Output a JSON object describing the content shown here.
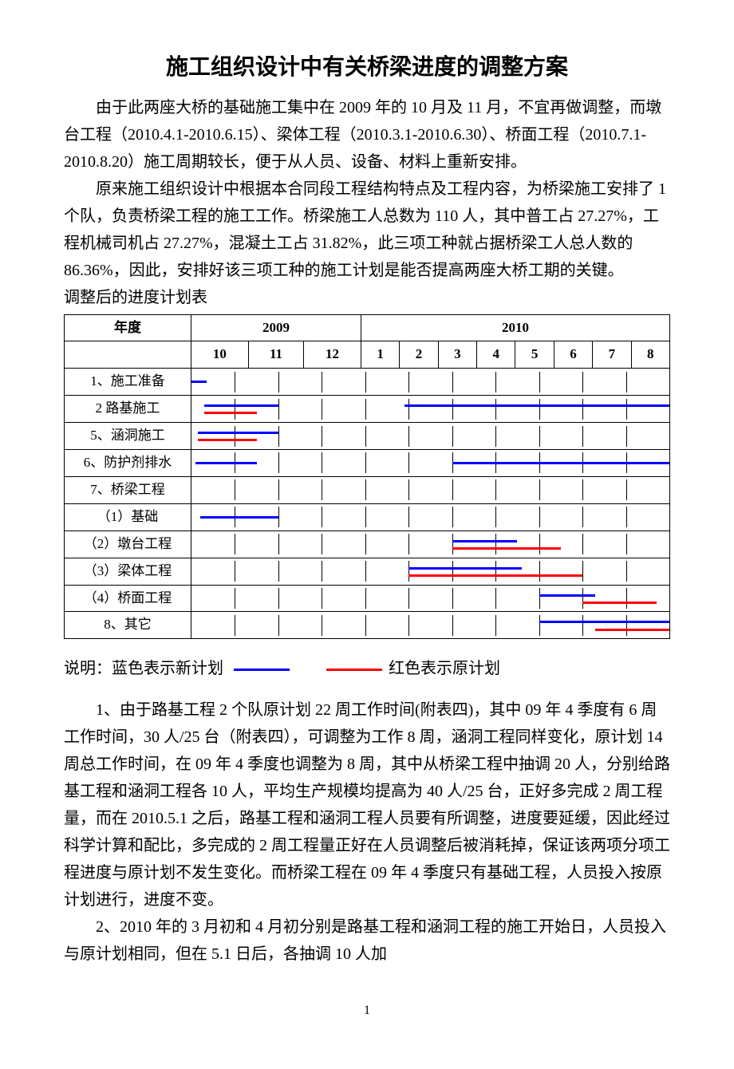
{
  "title": "施工组织设计中有关桥梁进度的调整方案",
  "para1": "由于此两座大桥的基础施工集中在 2009 年的 10 月及 11 月，不宜再做调整，而墩台工程（2010.4.1-2010.6.15）、梁体工程（2010.3.1-2010.6.30）、桥面工程（2010.7.1-2010.8.20）施工周期较长，便于从人员、设备、材料上重新安排。",
  "para2": "原来施工组织设计中根据本合同段工程结构特点及工程内容，为桥梁施工安排了 1 个队，负责桥梁工程的施工工作。桥梁施工人总数为 110 人，其中普工占 27.27%，工程机械司机占 27.27%，混凝土工占 31.82%，此三项工种就占据桥梁工人总人数的 86.36%，因此，安排好该三项工种的施工计划是能否提高两座大桥工期的关键。",
  "tableCaption": "调整后的进度计划表",
  "gantt": {
    "yearLabel": "年度",
    "year1": "2009",
    "year2": "2010",
    "months": [
      "10",
      "11",
      "12",
      "1",
      "2",
      "3",
      "4",
      "5",
      "6",
      "7",
      "8"
    ],
    "colors": {
      "new": "#0000ff",
      "old": "#ff0000"
    },
    "rows": [
      {
        "label": "1、施工准备",
        "bars": [
          {
            "color": "new",
            "startCol": 0,
            "startFrac": 0.0,
            "endCol": 0,
            "endFrac": 0.35,
            "y": 0.5
          }
        ]
      },
      {
        "label": "2 路基施工",
        "bars": [
          {
            "color": "new",
            "startCol": 0,
            "startFrac": 0.3,
            "endCol": 1,
            "endFrac": 1.0,
            "y": 0.35
          },
          {
            "color": "new",
            "startCol": 4,
            "startFrac": 0.9,
            "endCol": 10,
            "endFrac": 1.0,
            "y": 0.35
          },
          {
            "color": "old",
            "startCol": 0,
            "startFrac": 0.3,
            "endCol": 1,
            "endFrac": 0.5,
            "y": 0.7
          }
        ]
      },
      {
        "label": "5、涵洞施工",
        "bars": [
          {
            "color": "new",
            "startCol": 0,
            "startFrac": 0.15,
            "endCol": 1,
            "endFrac": 1.0,
            "y": 0.35
          },
          {
            "color": "old",
            "startCol": 0,
            "startFrac": 0.15,
            "endCol": 1,
            "endFrac": 0.5,
            "y": 0.7
          }
        ]
      },
      {
        "label": "6、防护剂排水",
        "bars": [
          {
            "color": "new",
            "startCol": 0,
            "startFrac": 0.1,
            "endCol": 1,
            "endFrac": 0.5,
            "y": 0.5
          },
          {
            "color": "new",
            "startCol": 6,
            "startFrac": 0.0,
            "endCol": 10,
            "endFrac": 1.0,
            "y": 0.5
          }
        ]
      },
      {
        "label": "7、桥梁工程",
        "bars": []
      },
      {
        "label": "（1）基础",
        "bars": [
          {
            "color": "new",
            "startCol": 0,
            "startFrac": 0.2,
            "endCol": 1,
            "endFrac": 1.0,
            "y": 0.5
          }
        ]
      },
      {
        "label": "（2）墩台工程",
        "bars": [
          {
            "color": "new",
            "startCol": 6,
            "startFrac": 0.0,
            "endCol": 7,
            "endFrac": 0.5,
            "y": 0.35
          },
          {
            "color": "old",
            "startCol": 6,
            "startFrac": 0.0,
            "endCol": 8,
            "endFrac": 0.5,
            "y": 0.7
          }
        ]
      },
      {
        "label": "（3）梁体工程",
        "bars": [
          {
            "color": "new",
            "startCol": 5,
            "startFrac": 0.0,
            "endCol": 7,
            "endFrac": 0.6,
            "y": 0.35
          },
          {
            "color": "old",
            "startCol": 5,
            "startFrac": 0.0,
            "endCol": 8,
            "endFrac": 1.0,
            "y": 0.7
          }
        ]
      },
      {
        "label": "（4）桥面工程",
        "bars": [
          {
            "color": "new",
            "startCol": 8,
            "startFrac": 0.0,
            "endCol": 9,
            "endFrac": 0.3,
            "y": 0.35
          },
          {
            "color": "old",
            "startCol": 9,
            "startFrac": 0.0,
            "endCol": 10,
            "endFrac": 0.7,
            "y": 0.7
          }
        ]
      },
      {
        "label": "8、其它",
        "bars": [
          {
            "color": "new",
            "startCol": 8,
            "startFrac": 0.0,
            "endCol": 10,
            "endFrac": 1.0,
            "y": 0.35
          },
          {
            "color": "old",
            "startCol": 9,
            "startFrac": 0.3,
            "endCol": 10,
            "endFrac": 1.0,
            "y": 0.7
          }
        ]
      }
    ]
  },
  "legend": {
    "prefix": "说明：",
    "newText": "蓝色表示新计划",
    "oldText": "红色表示原计划"
  },
  "para3": "1、由于路基工程 2 个队原计划 22 周工作时间(附表四)，其中 09 年 4 季度有 6 周工作时间，30 人/25 台（附表四），可调整为工作 8 周，涵洞工程同样变化，原计划 14 周总工作时间，在 09 年 4 季度也调整为 8 周，其中从桥梁工程中抽调 20 人，分别给路基工程和涵洞工程各 10 人，平均生产规模均提高为 40 人/25 台，正好多完成 2 周工程量，而在 2010.5.1 之后，路基工程和涵洞工程人员要有所调整，进度要延缓，因此经过科学计算和配比，多完成的 2 周工程量正好在人员调整后被消耗掉，保证该两项分项工程进度与原计划不发生变化。而桥梁工程在 09 年 4 季度只有基础工程，人员投入按原计划进行，进度不变。",
  "para4": "2、2010 年的 3 月初和 4 月初分别是路基工程和涵洞工程的施工开始日，人员投入与原计划相同，但在 5.1 日后，各抽调 10 人加",
  "pageNumber": "1"
}
